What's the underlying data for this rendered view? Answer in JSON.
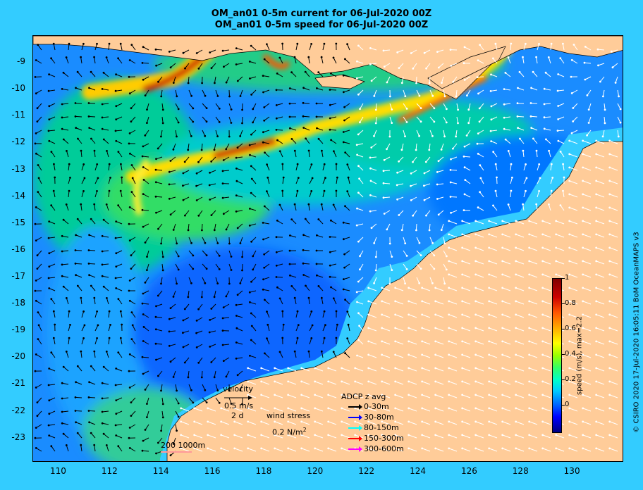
{
  "titles": {
    "line1": "OM_an01 0-5m current for 06-Jul-2020 00Z",
    "line2": "OM_an01 0-5m speed for 06-Jul-2020 00Z"
  },
  "axes": {
    "lat_ticks": [
      "-9",
      "-10",
      "-11",
      "-12",
      "-13",
      "-14",
      "-15",
      "-16",
      "-17",
      "-18",
      "-19",
      "-20",
      "-21",
      "-22",
      "-23"
    ],
    "lat_values": [
      -9,
      -10,
      -11,
      -12,
      -13,
      -14,
      -15,
      -16,
      -17,
      -18,
      -19,
      -20,
      -21,
      -22,
      -23
    ],
    "lon_ticks": [
      "110",
      "112",
      "114",
      "116",
      "118",
      "120",
      "122",
      "124",
      "126",
      "128",
      "130"
    ],
    "lon_values": [
      110,
      112,
      114,
      116,
      118,
      120,
      122,
      124,
      126,
      128,
      130
    ],
    "lon_range": [
      109,
      132
    ],
    "lat_range": [
      -23.9,
      -8
    ]
  },
  "colorbar": {
    "ticks": [
      "1",
      "0.8",
      "0.6",
      "0.4",
      "0.2",
      "0"
    ],
    "tick_values": [
      1,
      0.8,
      0.6,
      0.4,
      0.2,
      0
    ],
    "label": "speed (m/s), max=2.2",
    "colors": [
      "#000080",
      "#0000ff",
      "#00ccff",
      "#33ff66",
      "#ffff00",
      "#ff5500",
      "#800000"
    ]
  },
  "legend": {
    "velocity_label": "velocity",
    "velocity_scale": "0.5 m/s",
    "velocity_time": "2 d",
    "wind_label": "wind stress",
    "wind_value": "0.2 N/m",
    "wind_sup": "2",
    "adcp_title": "ADCP z avg",
    "adcp_items": [
      {
        "label": "0-30m",
        "color": "#000000"
      },
      {
        "label": "30-80m",
        "color": "#0000ff"
      },
      {
        "label": "80-150m",
        "color": "#00ffff"
      },
      {
        "label": "150-300m",
        "color": "#ff0000"
      },
      {
        "label": "300-600m",
        "color": "#ff00ff"
      }
    ],
    "depth_contours": "200  1000m"
  },
  "credit": "© CSIRO 2020  17-Jul-2020 16:05:11 BoM OceanMAPS v3",
  "colors": {
    "background": "#33ccff",
    "land": "#ffcc99",
    "shelf": "#33ccff",
    "ocean_low": "#0066ff",
    "ocean_mid": "#00ccff",
    "jet": "#ff8800"
  }
}
